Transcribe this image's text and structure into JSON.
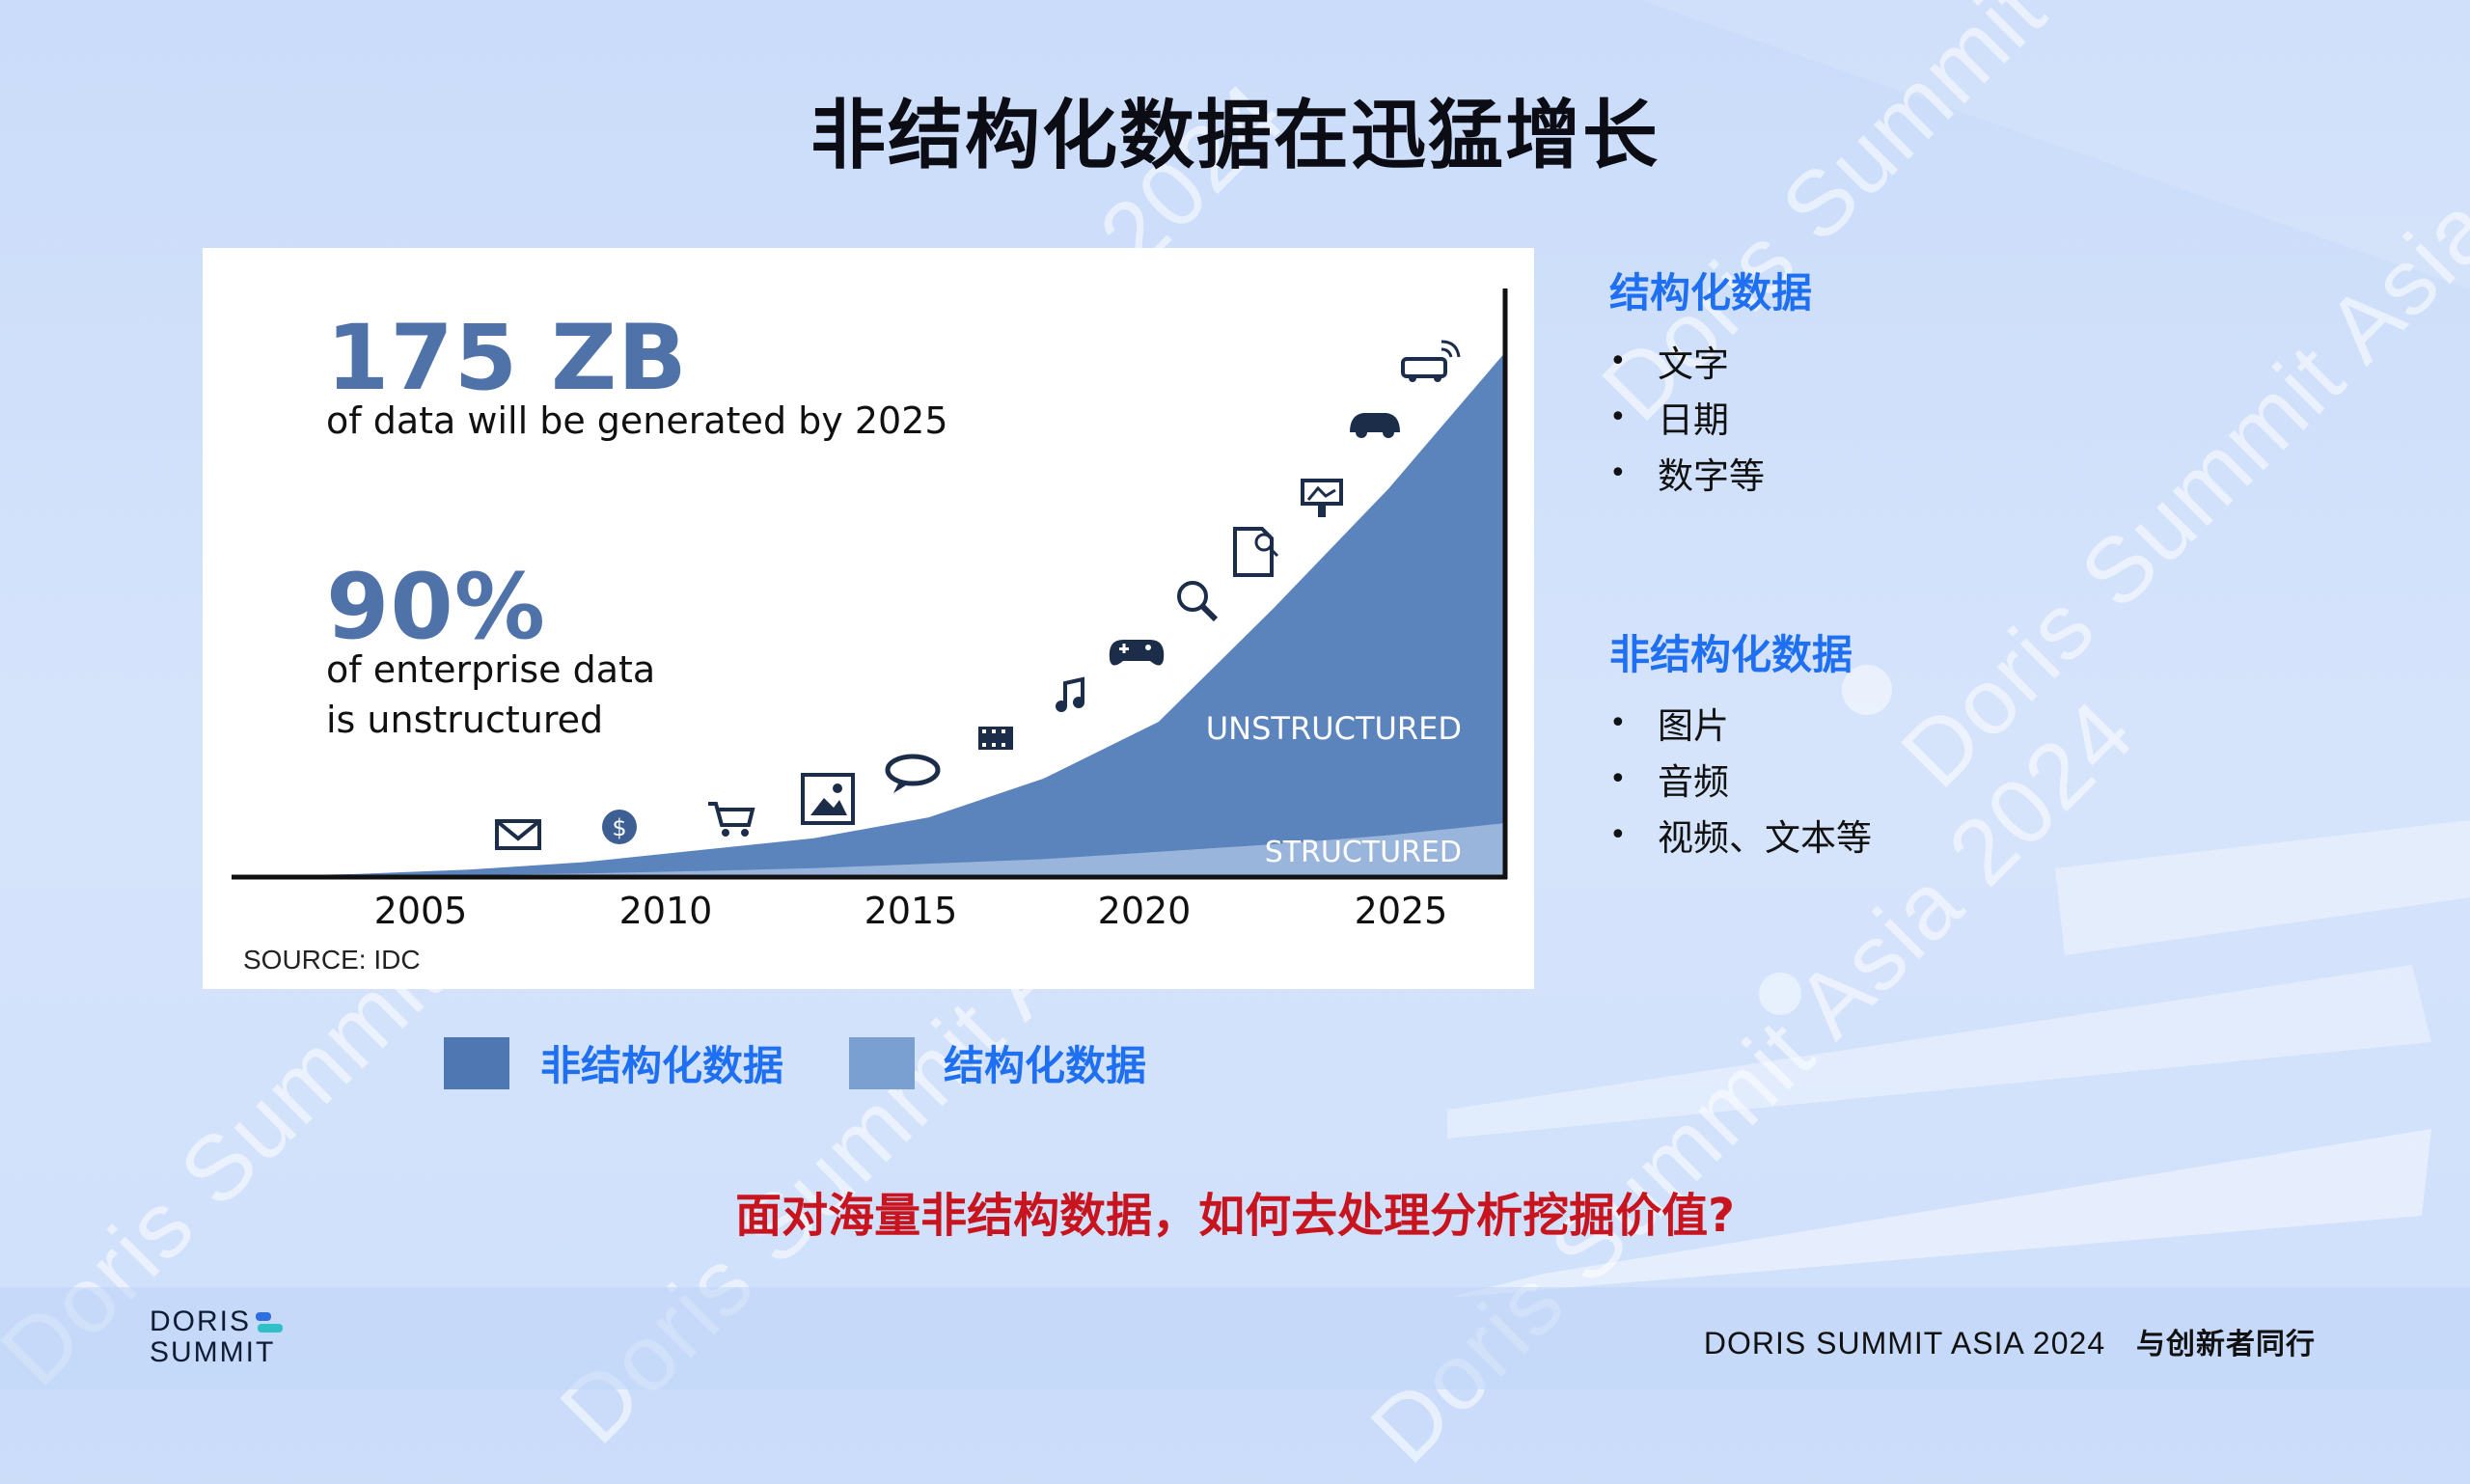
{
  "slide": {
    "title": "非结构化数据在迅猛增长",
    "question": "面对海量非结构数据，如何去处理分析挖掘价值?"
  },
  "watermark": "Doris Summit Asia 2024",
  "infographic": {
    "stat1_value": "175 ZB",
    "stat1_text": "of data will be generated by 2025",
    "stat2_value": "90%",
    "stat2_line1": "of enterprise data",
    "stat2_line2": "is unstructured",
    "source": "SOURCE: IDC",
    "area_labels": {
      "unstructured": "UNSTRUCTURED",
      "structured": "STRUCTURED"
    },
    "icons": [
      "envelope-icon",
      "coin-icon",
      "cart-icon",
      "photo-icon",
      "chat-icon",
      "film-icon",
      "music-icon",
      "gamepad-icon",
      "search-globe-icon",
      "document-search-icon",
      "billboard-icon",
      "car-icon",
      "connected-car-icon"
    ]
  },
  "chart_data": {
    "type": "area",
    "title": "",
    "xlabel": "",
    "ylabel": "",
    "x_ticks": [
      "2005",
      "2010",
      "2015",
      "2020",
      "2025"
    ],
    "x": [
      2003,
      2005,
      2007,
      2009,
      2011,
      2013,
      2015,
      2017,
      2019,
      2021,
      2023,
      2025
    ],
    "series": [
      {
        "name": "UNSTRUCTURED",
        "values": [
          0.2,
          1,
          2.5,
          5,
          9,
          13,
          20,
          33,
          52,
          90,
          130,
          175
        ],
        "color": "#5b84bd"
      },
      {
        "name": "STRUCTURED",
        "values": [
          0.1,
          0.3,
          0.6,
          1.2,
          2,
          3,
          4.5,
          6,
          8.5,
          11,
          14,
          18
        ],
        "color": "#9ab5db"
      }
    ],
    "ylim": [
      0,
      180
    ],
    "grid": false,
    "legend": "none"
  },
  "right_panel": {
    "structured_heading": "结构化数据",
    "structured_items": [
      "文字",
      "日期",
      "数字等"
    ],
    "unstructured_heading": "非结构化数据",
    "unstructured_items": [
      "图片",
      "音频",
      "视频、文本等"
    ],
    "bullet": "•"
  },
  "legend": {
    "unstructured_label": "非结构化数据",
    "structured_label": "结构化数据",
    "unstructured_color": "#4f78b3",
    "structured_color": "#7aa0d2"
  },
  "footer": {
    "logo_line1": "DORIS",
    "logo_line2": "SUMMIT",
    "event": "DORIS SUMMIT ASIA 2024",
    "slogan": "与创新者同行"
  }
}
